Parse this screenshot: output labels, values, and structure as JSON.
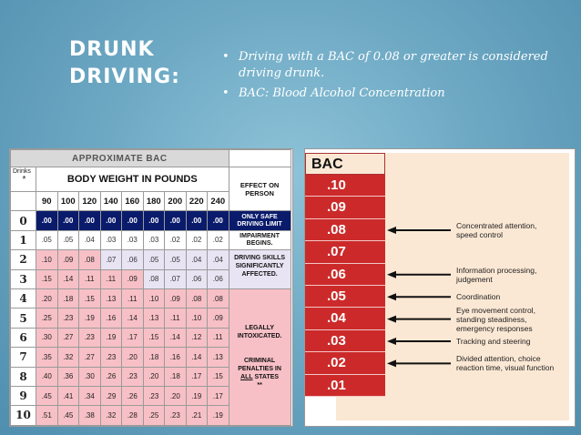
{
  "slide": {
    "title_line1": "DRUNK",
    "title_line2": "DRIVING:",
    "bullets": [
      "Driving with a BAC of 0.08 or greater is considered driving drunk.",
      "BAC: Blood Alcohol Concentration"
    ]
  },
  "table": {
    "title": "APPROXIMATE BAC",
    "drinks_label": "Drinks",
    "drinks_star": "*",
    "weight_header": "BODY WEIGHT IN POUNDS",
    "effect_header": "EFFECT ON PERSON",
    "weights": [
      "90",
      "100",
      "120",
      "140",
      "160",
      "180",
      "200",
      "220",
      "240"
    ],
    "rows": [
      {
        "drinks": "0",
        "values": [
          ".00",
          ".00",
          ".00",
          ".00",
          ".00",
          ".00",
          ".00",
          ".00",
          ".00"
        ]
      },
      {
        "drinks": "1",
        "values": [
          ".05",
          ".05",
          ".04",
          ".03",
          ".03",
          ".03",
          ".02",
          ".02",
          ".02"
        ]
      },
      {
        "drinks": "2",
        "values": [
          ".10",
          ".09",
          ".08",
          ".07",
          ".06",
          ".05",
          ".05",
          ".04",
          ".04"
        ]
      },
      {
        "drinks": "3",
        "values": [
          ".15",
          ".14",
          ".11",
          ".11",
          ".09",
          ".08",
          ".07",
          ".06",
          ".06"
        ]
      },
      {
        "drinks": "4",
        "values": [
          ".20",
          ".18",
          ".15",
          ".13",
          ".11",
          ".10",
          ".09",
          ".08",
          ".08"
        ]
      },
      {
        "drinks": "5",
        "values": [
          ".25",
          ".23",
          ".19",
          ".16",
          ".14",
          ".13",
          ".11",
          ".10",
          ".09"
        ]
      },
      {
        "drinks": "6",
        "values": [
          ".30",
          ".27",
          ".23",
          ".19",
          ".17",
          ".15",
          ".14",
          ".12",
          ".11"
        ]
      },
      {
        "drinks": "7",
        "values": [
          ".35",
          ".32",
          ".27",
          ".23",
          ".20",
          ".18",
          ".16",
          ".14",
          ".13"
        ]
      },
      {
        "drinks": "8",
        "values": [
          ".40",
          ".36",
          ".30",
          ".26",
          ".23",
          ".20",
          ".18",
          ".17",
          ".15"
        ]
      },
      {
        "drinks": "9",
        "values": [
          ".45",
          ".41",
          ".34",
          ".29",
          ".26",
          ".23",
          ".20",
          ".19",
          ".17"
        ]
      },
      {
        "drinks": "10",
        "values": [
          ".51",
          ".45",
          ".38",
          ".32",
          ".28",
          ".25",
          ".23",
          ".21",
          ".19"
        ]
      }
    ],
    "effects": {
      "safe": "ONLY SAFE DRIVING LIMIT",
      "impairment": "IMPAIRMENT BEGINS.",
      "skills": "DRIVING SKILLS SIGNIFICANTLY AFFECTED.",
      "legal": "LEGALLY INTOXICATED.",
      "criminal_pre": "CRIMINAL PENALTIES IN",
      "criminal_all": "ALL",
      "criminal_post": "STATES",
      "criminal_star": "**"
    }
  },
  "bac_chart": {
    "header": "BAC",
    "levels": [
      ".10",
      ".09",
      ".08",
      ".07",
      ".06",
      ".05",
      ".04",
      ".03",
      ".02",
      ".01"
    ],
    "labels": [
      {
        "level": ".08",
        "text": "Concentrated attention,\nspeed control"
      },
      {
        "level": ".06",
        "text": "Information processing,\njudgement"
      },
      {
        "level": ".05",
        "text": "Coordination"
      },
      {
        "level": ".04",
        "text": "Eye movement control,\nstanding steadiness,\nemergency responses"
      },
      {
        "level": ".03",
        "text": "Tracking and steering"
      },
      {
        "level": ".02",
        "text": "Divided attention, choice\nreaction time, visual function"
      }
    ]
  },
  "colors": {
    "background": "#6ea9c4",
    "navy_row": "#0a1b6b",
    "lavender_row": "#e8e4f3",
    "pink_row": "#f7c0c6",
    "bac_red": "#cc2a2a",
    "beige": "#fbe8d4"
  }
}
